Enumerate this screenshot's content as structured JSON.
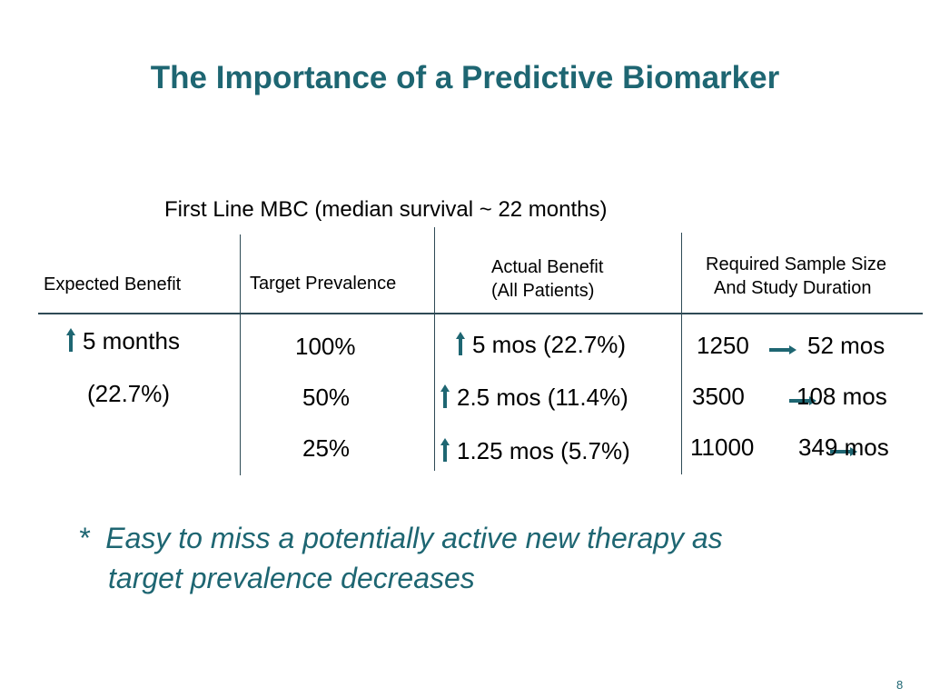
{
  "slide": {
    "title": "The Importance of a Predictive Biomarker",
    "subtitle": "First Line MBC (median survival ~ 22 months)",
    "page_number": "8",
    "accent_color": "#1e6672"
  },
  "table": {
    "headers": {
      "expected_benefit": "Expected Benefit",
      "target_prevalence": "Target Prevalence",
      "actual_benefit_line1": "Actual Benefit",
      "actual_benefit_line2": "(All Patients)",
      "required_line1": "Required Sample Size",
      "required_line2": "And Study Duration"
    },
    "expected_benefit": {
      "value": "5 months",
      "percent": "(22.7%)"
    },
    "rows": [
      {
        "prevalence": "100%",
        "actual": "5 mos (22.7%)",
        "sample": "1250",
        "duration": "52 mos"
      },
      {
        "prevalence": "50%",
        "actual": "2.5 mos (11.4%)",
        "sample": "3500",
        "duration": "108 mos"
      },
      {
        "prevalence": "25%",
        "actual": "1.25 mos (5.7%)",
        "sample": "11000",
        "duration": "349 mos"
      }
    ]
  },
  "note": {
    "bullet": "*",
    "line1": "Easy to miss a potentially active new therapy as",
    "line2": "target prevalence decreases"
  }
}
